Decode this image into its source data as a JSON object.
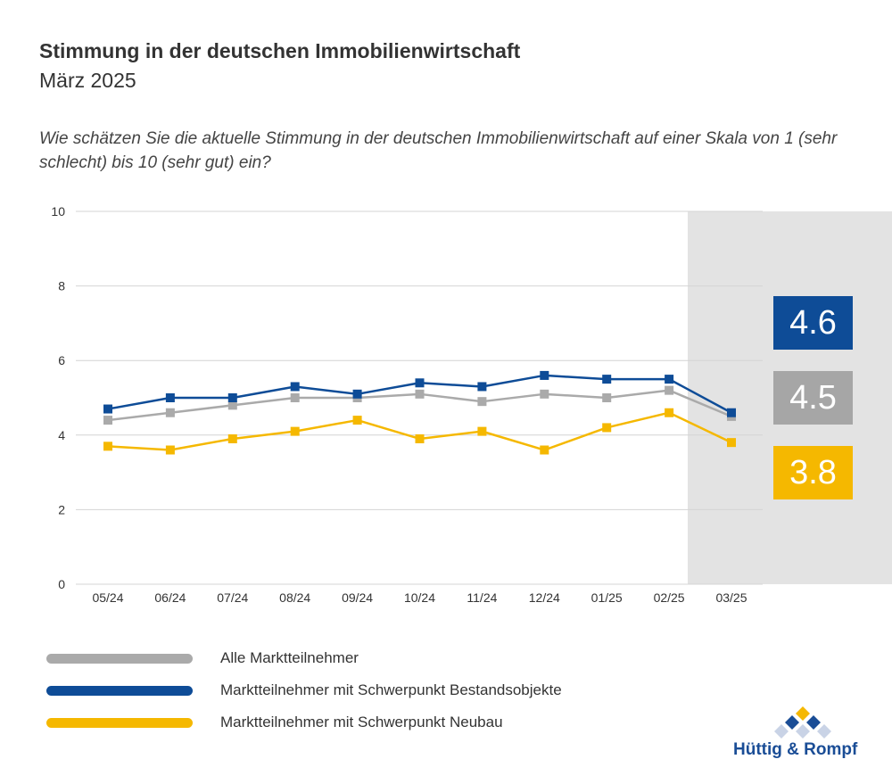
{
  "header": {
    "title": "Stimmung in der deutschen Immobilienwirtschaft",
    "subtitle": "März 2025",
    "question": "Wie schätzen Sie die aktuelle Stimmung in der deutschen Immobilienwirtschaft auf einer Skala von 1 (sehr schlecht) bis 10 (sehr gut) ein?"
  },
  "chart_data": {
    "type": "line",
    "title": "",
    "xlabel": "",
    "ylabel": "",
    "categories": [
      "05/24",
      "06/24",
      "07/24",
      "08/24",
      "09/24",
      "10/24",
      "11/24",
      "12/24",
      "01/25",
      "02/25",
      "03/25"
    ],
    "y_ticks": [
      "0",
      "2",
      "4",
      "6",
      "8",
      "10"
    ],
    "ylim": [
      0,
      10
    ],
    "grid": true,
    "highlight_last_category": true,
    "series": [
      {
        "name": "Alle Marktteilnehmer",
        "color": "#aaaaaa",
        "values": [
          4.4,
          4.6,
          4.8,
          5.0,
          5.0,
          5.1,
          4.9,
          5.1,
          5.0,
          5.2,
          4.5
        ]
      },
      {
        "name": "Marktteilnehmer mit Schwerpunkt Bestandsobjekte",
        "color": "#0e4c97",
        "values": [
          4.7,
          5.0,
          5.0,
          5.3,
          5.1,
          5.4,
          5.3,
          5.6,
          5.5,
          5.5,
          4.6
        ]
      },
      {
        "name": "Marktteilnehmer mit Schwerpunkt Neubau",
        "color": "#f5b800",
        "values": [
          3.7,
          3.6,
          3.9,
          4.1,
          4.4,
          3.9,
          4.1,
          3.6,
          4.2,
          4.6,
          3.8
        ]
      }
    ]
  },
  "value_boxes": [
    {
      "value": "4.6",
      "color": "#0e4c97"
    },
    {
      "value": "4.5",
      "color": "#a6a6a6"
    },
    {
      "value": "3.8",
      "color": "#f5b800"
    }
  ],
  "legend": [
    {
      "label": "Alle Marktteilnehmer",
      "color": "#aaaaaa"
    },
    {
      "label": "Marktteilnehmer mit Schwerpunkt Bestandsobjekte",
      "color": "#0e4c97"
    },
    {
      "label": "Marktteilnehmer mit Schwerpunkt Neubau",
      "color": "#f5b800"
    }
  ],
  "logo": {
    "text": "Hüttig & Rompf"
  }
}
